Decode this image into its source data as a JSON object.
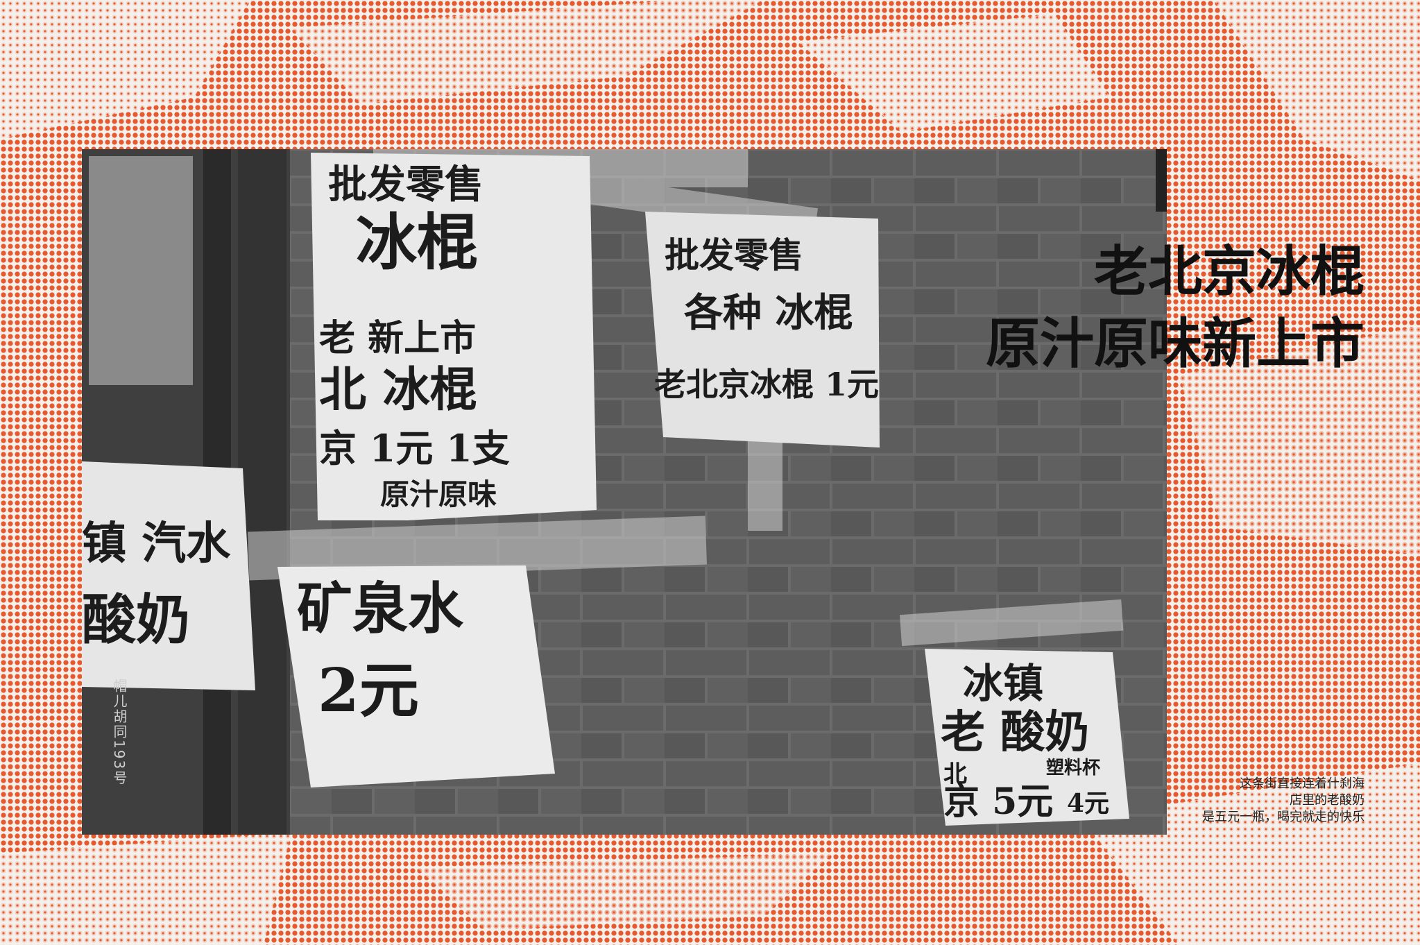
{
  "title": {
    "line1": "老北京冰棍",
    "line2": "原汁原味新上市"
  },
  "street_label": "帽儿胡同193号",
  "caption": {
    "line1": "这条街直接连着什刹海",
    "line2": "店里的老酸奶",
    "line3": "是五元一瓶，喝完就走的快乐"
  },
  "photo": {
    "sign_wholesale_popsicle": [
      "批发零售",
      "冰棍",
      "老 新上市",
      "北 冰棍",
      "京 1元 1支",
      "原汁原味"
    ],
    "sign_various_popsicle": [
      "批发零售",
      "各种 冰棍",
      "老北京冰棍 1元"
    ],
    "sign_yogurt_left": [
      "镇 汽水",
      "酸奶"
    ],
    "sign_mineral_water": [
      "矿泉水",
      "2元"
    ],
    "sign_iced_yogurt": [
      "冰镇",
      "老 酸奶",
      "北",
      "京 5元",
      "塑料杯",
      "4元"
    ]
  },
  "colors": {
    "accent": "#e65a2f",
    "text": "#111111"
  }
}
